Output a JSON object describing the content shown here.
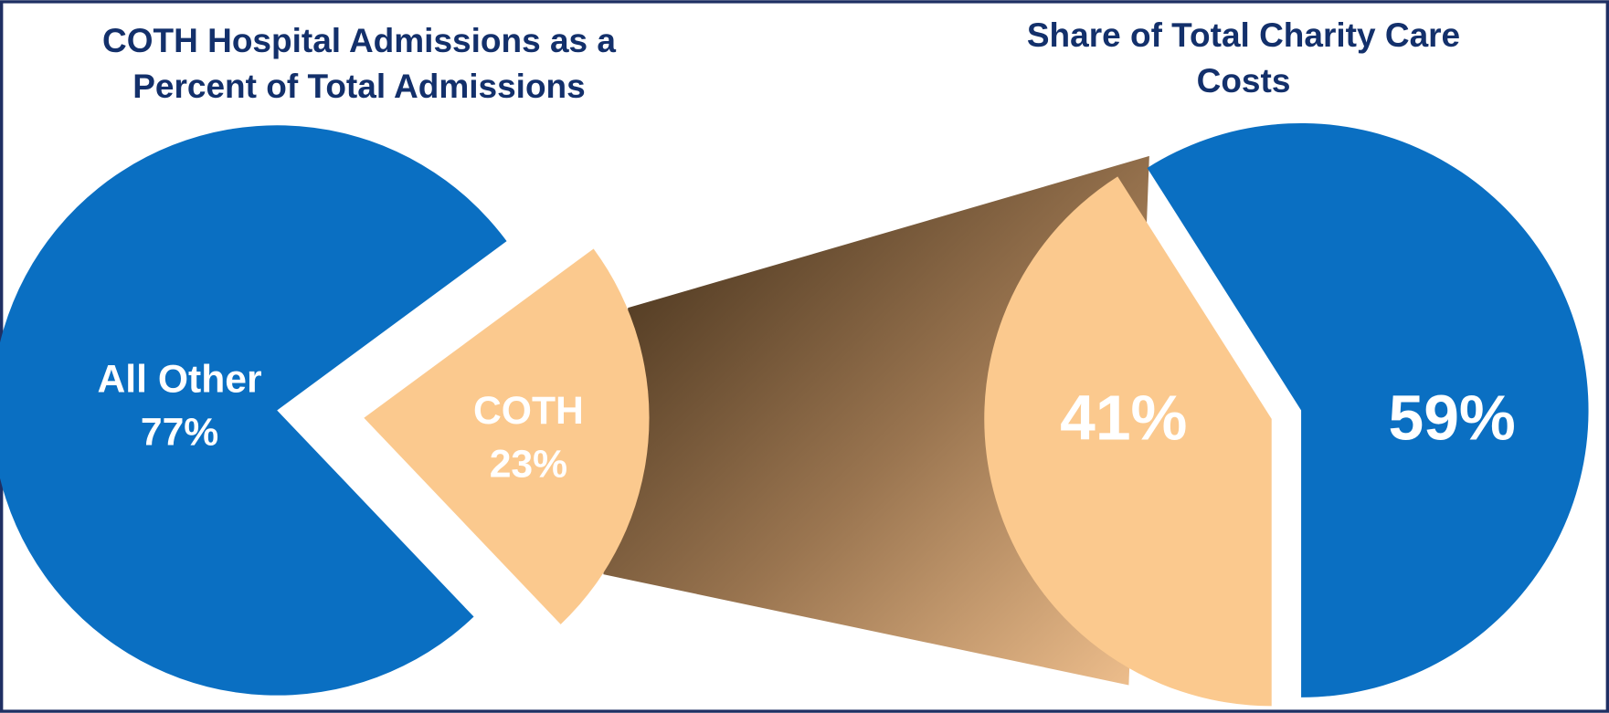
{
  "chart_data": [
    {
      "type": "pie",
      "title": "COTH Hospital Admissions as a Percent of Total Admissions",
      "categories": [
        "All Other",
        "COTH"
      ],
      "values": [
        77,
        23
      ],
      "value_labels": [
        "77%",
        "23%"
      ],
      "colors": [
        "#0a6fc2",
        "#fbc98e"
      ]
    },
    {
      "type": "pie",
      "title": "Share of Total Charity Care Costs",
      "categories": [
        null,
        null
      ],
      "values": [
        41,
        59
      ],
      "value_labels": [
        "41%",
        "59%"
      ],
      "colors": [
        "#fbc98e",
        "#0a6fc2"
      ]
    }
  ]
}
